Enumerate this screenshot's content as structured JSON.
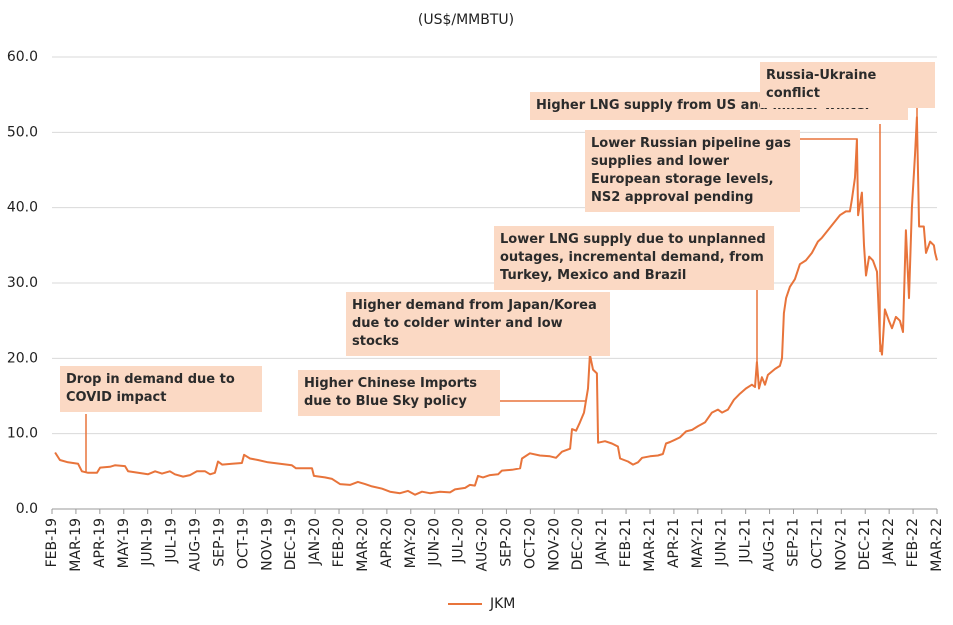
{
  "chart_data": {
    "type": "line",
    "title": "(US$/MMBTU)",
    "series": [
      {
        "name": "JKM",
        "color": "#e8743b",
        "x": [
          0.13,
          0.33,
          0.67,
          1.09,
          1.25,
          1.51,
          1.88,
          2.01,
          2.42,
          2.63,
          3.05,
          3.18,
          3.6,
          4.01,
          4.31,
          4.6,
          4.93,
          5.14,
          5.48,
          5.77,
          6.06,
          6.4,
          6.61,
          6.81,
          6.94,
          7.11,
          7.53,
          7.94,
          8.03,
          8.28,
          8.61,
          9.03,
          9.53,
          10.03,
          10.2,
          10.87,
          10.95,
          11.41,
          11.71,
          12.04,
          12.46,
          12.79,
          13.09,
          13.38,
          13.8,
          14.13,
          14.55,
          14.88,
          15.18,
          15.47,
          15.8,
          16.22,
          16.64,
          16.85,
          17.27,
          17.47,
          17.68,
          17.81,
          18.02,
          18.31,
          18.65,
          18.81,
          19.23,
          19.57,
          19.65,
          19.98,
          20.4,
          20.82,
          21.07,
          21.32,
          21.66,
          21.74,
          21.91,
          22.07,
          22.24,
          22.41,
          22.49,
          22.62,
          22.78,
          22.83,
          23.12,
          23.41,
          23.66,
          23.75,
          24.08,
          24.29,
          24.5,
          24.67,
          25.0,
          25.33,
          25.54,
          25.67,
          25.84,
          26.05,
          26.25,
          26.51,
          26.76,
          27.01,
          27.3,
          27.59,
          27.84,
          28.01,
          28.26,
          28.51,
          28.76,
          29.01,
          29.26,
          29.39,
          29.47,
          29.56,
          29.68,
          29.81,
          29.93,
          30.23,
          30.43,
          30.52,
          30.6,
          30.69,
          30.85,
          31.06,
          31.27,
          31.52,
          31.77,
          32.02,
          32.19,
          32.44,
          32.69,
          32.94,
          33.19,
          33.36,
          33.44,
          33.57,
          33.65,
          33.7,
          33.78,
          33.86,
          33.95,
          34.03,
          34.16,
          34.32,
          34.49,
          34.62,
          34.7,
          34.82,
          34.99,
          35.12,
          35.28,
          35.45,
          35.58,
          35.7,
          35.83,
          35.95,
          36.08,
          36.16,
          36.25,
          36.45,
          36.54,
          36.71,
          36.87,
          36.92,
          37.0
        ],
        "values": [
          7.5,
          6.5,
          6.2,
          6.0,
          5.0,
          4.8,
          4.8,
          5.5,
          5.6,
          5.8,
          5.7,
          5.0,
          4.8,
          4.6,
          5.0,
          4.7,
          5.0,
          4.6,
          4.3,
          4.5,
          5.0,
          5.0,
          4.6,
          4.8,
          6.3,
          5.9,
          6.0,
          6.1,
          7.2,
          6.7,
          6.5,
          6.2,
          6.0,
          5.8,
          5.4,
          5.4,
          4.4,
          4.2,
          4.0,
          3.3,
          3.2,
          3.6,
          3.3,
          3.0,
          2.7,
          2.3,
          2.1,
          2.4,
          1.9,
          2.3,
          2.1,
          2.3,
          2.2,
          2.6,
          2.8,
          3.2,
          3.1,
          4.4,
          4.2,
          4.5,
          4.6,
          5.1,
          5.2,
          5.4,
          6.7,
          7.4,
          7.1,
          7.0,
          6.8,
          7.6,
          8.0,
          10.6,
          10.4,
          11.5,
          12.8,
          16.0,
          20.5,
          18.5,
          18.0,
          8.8,
          9.0,
          8.7,
          8.3,
          6.7,
          6.3,
          5.9,
          6.2,
          6.8,
          7.0,
          7.1,
          7.3,
          8.7,
          8.9,
          9.2,
          9.5,
          10.3,
          10.5,
          11.0,
          11.5,
          12.8,
          13.2,
          12.8,
          13.2,
          14.5,
          15.3,
          16.0,
          16.5,
          16.2,
          19.5,
          16.0,
          17.5,
          16.5,
          17.8,
          18.6,
          19.0,
          20.0,
          26.0,
          28.0,
          29.5,
          30.5,
          32.5,
          33.0,
          34.0,
          35.5,
          36.0,
          37.0,
          38.0,
          39.0,
          39.5,
          39.5,
          41.0,
          44.0,
          49.0,
          39.0,
          40.5,
          42.0,
          35.0,
          31.0,
          33.5,
          33.0,
          31.5,
          22.0,
          20.5,
          26.5,
          25.0,
          24.0,
          25.5,
          25.0,
          23.5,
          37.0,
          28.0,
          40.0,
          47.0,
          52.0,
          37.5,
          37.5,
          34.0,
          35.5,
          35.0,
          34.0,
          33.0
        ]
      }
    ],
    "xlim": [
      0,
      37
    ],
    "xticks": [
      {
        "value": 0,
        "label": "FEB-19"
      },
      {
        "value": 1,
        "label": "MAR-19"
      },
      {
        "value": 2,
        "label": "APR-19"
      },
      {
        "value": 3,
        "label": "MAY-19"
      },
      {
        "value": 4,
        "label": "JUN-19"
      },
      {
        "value": 5,
        "label": "JUL-19"
      },
      {
        "value": 6,
        "label": "AUG-19"
      },
      {
        "value": 7,
        "label": "SEP-19"
      },
      {
        "value": 8,
        "label": "OCT-19"
      },
      {
        "value": 9,
        "label": "NOV-19"
      },
      {
        "value": 10,
        "label": "DEC-19"
      },
      {
        "value": 11,
        "label": "JAN-20"
      },
      {
        "value": 12,
        "label": "FEB-20"
      },
      {
        "value": 13,
        "label": "MAR-20"
      },
      {
        "value": 14,
        "label": "APR-20"
      },
      {
        "value": 15,
        "label": "MAY-20"
      },
      {
        "value": 16,
        "label": "JUN-20"
      },
      {
        "value": 17,
        "label": "JUL-20"
      },
      {
        "value": 18,
        "label": "AUG-20"
      },
      {
        "value": 19,
        "label": "SEP-20"
      },
      {
        "value": 20,
        "label": "OCT-20"
      },
      {
        "value": 21,
        "label": "NOV-20"
      },
      {
        "value": 22,
        "label": "DEC-20"
      },
      {
        "value": 23,
        "label": "JAN-21"
      },
      {
        "value": 24,
        "label": "FEB-21"
      },
      {
        "value": 25,
        "label": "MAR-21"
      },
      {
        "value": 26,
        "label": "APR-21"
      },
      {
        "value": 27,
        "label": "MAY-21"
      },
      {
        "value": 28,
        "label": "JUN-21"
      },
      {
        "value": 29,
        "label": "JUL-21"
      },
      {
        "value": 30,
        "label": "AUG-21"
      },
      {
        "value": 31,
        "label": "SEP-21"
      },
      {
        "value": 32,
        "label": "OCT-21"
      },
      {
        "value": 33,
        "label": "NOV-21"
      },
      {
        "value": 34,
        "label": "DEC-21"
      },
      {
        "value": 35,
        "label": "JAN-22"
      },
      {
        "value": 36,
        "label": "FEB-22"
      },
      {
        "value": 37,
        "label": "MAR-22"
      }
    ],
    "ylim": [
      0,
      60
    ],
    "yticks": [
      {
        "value": 0,
        "label": "0.0"
      },
      {
        "value": 10,
        "label": "10.0"
      },
      {
        "value": 20,
        "label": "20.0"
      },
      {
        "value": 30,
        "label": "30.0"
      },
      {
        "value": 40,
        "label": "40.0"
      },
      {
        "value": 50,
        "label": "50.0"
      },
      {
        "value": 60,
        "label": "60.0"
      }
    ],
    "grid": true,
    "legend": "bottom",
    "annotations": [
      "Drop in demand due to COVID impact",
      "Higher Chinese Imports due to Blue Sky policy",
      "Higher demand from Japan/Korea due to colder winter and low stocks",
      "Lower LNG supply due to unplanned outages, incremental demand, from Turkey, Mexico and Brazil",
      "Lower Russian pipeline gas supplies and lower European storage levels, NS2 approval pending",
      "Higher LNG supply from US and milder winter",
      "Russia-Ukraine conflict"
    ]
  }
}
